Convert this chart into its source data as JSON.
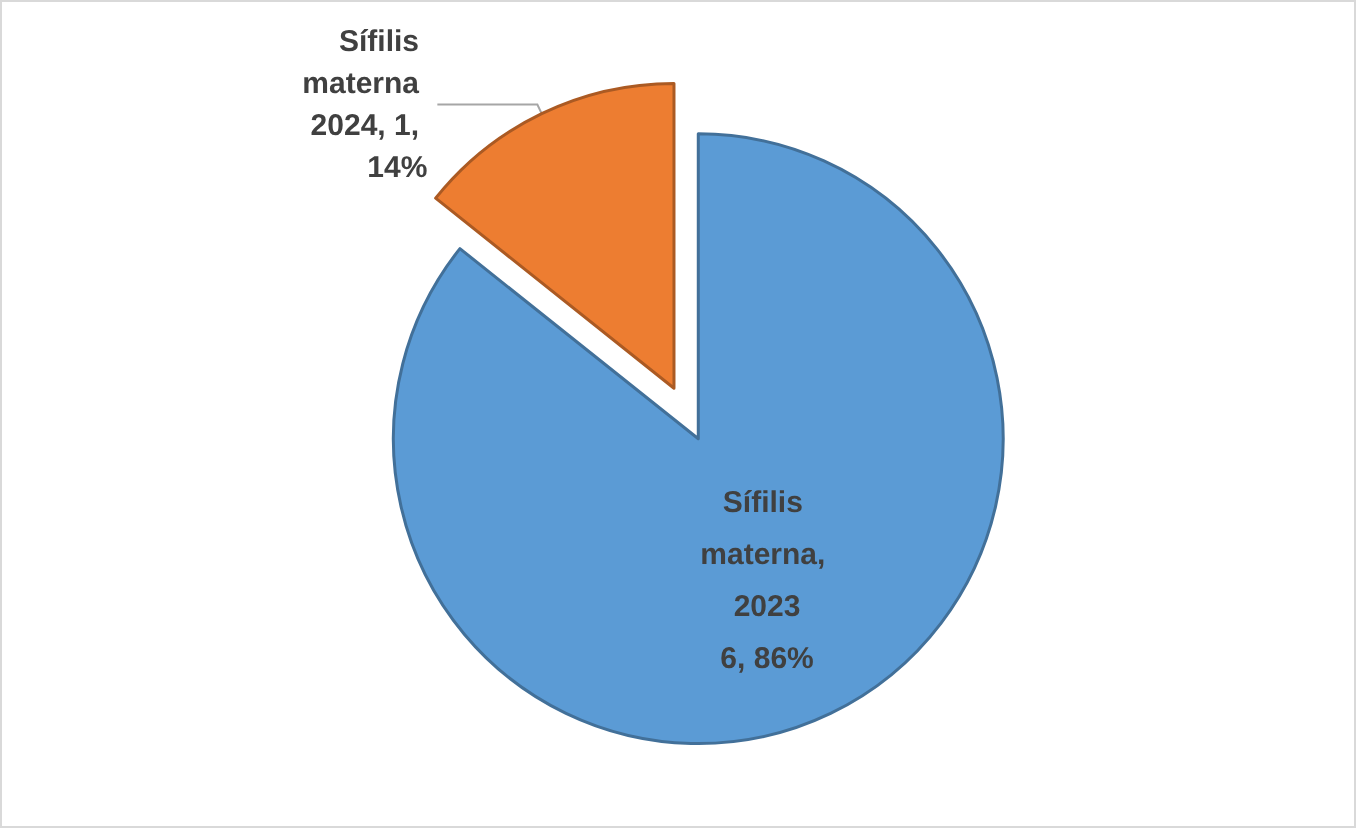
{
  "chart_data": {
    "type": "pie",
    "categories": [
      "Sífilis materna, 2023",
      "Sífilis materna 2024"
    ],
    "values": [
      6,
      1
    ],
    "colors": [
      "#5b9bd5",
      "#ed7d31"
    ],
    "value_labels": [
      "6, 86%",
      "1, 14%"
    ],
    "legend": false
  }
}
